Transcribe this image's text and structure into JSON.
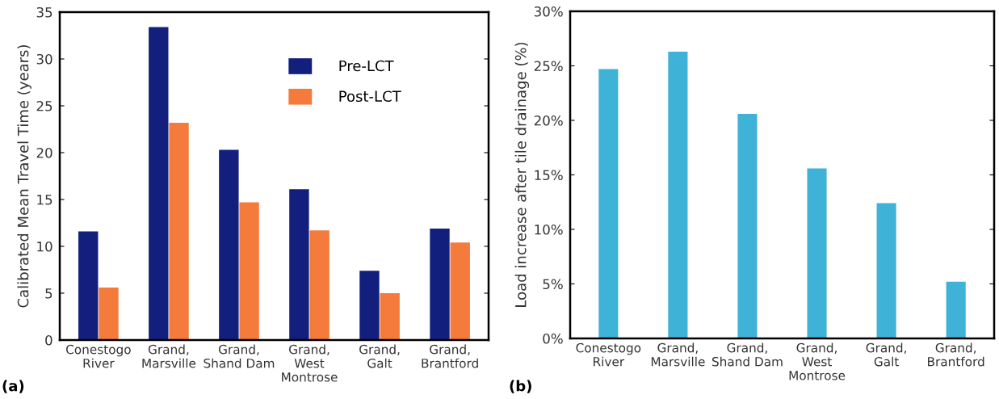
{
  "chart_data": [
    {
      "type": "bar",
      "ylabel": "Calibrated Mean Travel Time (years)",
      "categories": [
        "Conestogo\nRiver",
        "Grand,\nMarsville",
        "Grand,\nShand Dam",
        "Grand,\nWest\nMontrose",
        "Grand,\nGalt",
        "Grand,\nBrantford"
      ],
      "series": [
        {
          "name": "Pre-LCT",
          "color": "#121f7c",
          "values": [
            11.6,
            33.4,
            20.3,
            16.1,
            7.4,
            11.9
          ]
        },
        {
          "name": "Post-LCT",
          "color": "#f47b3c",
          "values": [
            5.6,
            23.2,
            14.7,
            11.7,
            5.0,
            10.4
          ]
        }
      ],
      "ylim": [
        0,
        35
      ],
      "yticks": [
        0,
        5,
        10,
        15,
        20,
        25,
        30,
        35
      ],
      "legend": "top right",
      "grid": false,
      "annotations": [
        "(a)"
      ]
    },
    {
      "type": "bar",
      "ylabel": "Load increase after tile drainage (%)",
      "categories": [
        "Conestogo\nRiver",
        "Grand,\nMarsville",
        "Grand,\nShand Dam",
        "Grand,\nWest\nMontrose",
        "Grand,\nGalt",
        "Grand,\nBrantford"
      ],
      "series": [
        {
          "color": "#3fb2d8",
          "values": [
            24.7,
            26.3,
            20.6,
            15.6,
            12.4,
            5.2
          ]
        }
      ],
      "ylim": [
        0,
        30
      ],
      "yticks": [
        {
          "value": 0,
          "label": "0%"
        },
        {
          "value": 5,
          "label": "5%"
        },
        {
          "value": 10,
          "label": "10%"
        },
        {
          "value": 15,
          "label": "15%"
        },
        {
          "value": 20,
          "label": "20%"
        },
        {
          "value": 25,
          "label": "25%"
        },
        {
          "value": 30,
          "label": "30%"
        }
      ],
      "grid": false,
      "annotations": [
        "(b)"
      ]
    }
  ]
}
